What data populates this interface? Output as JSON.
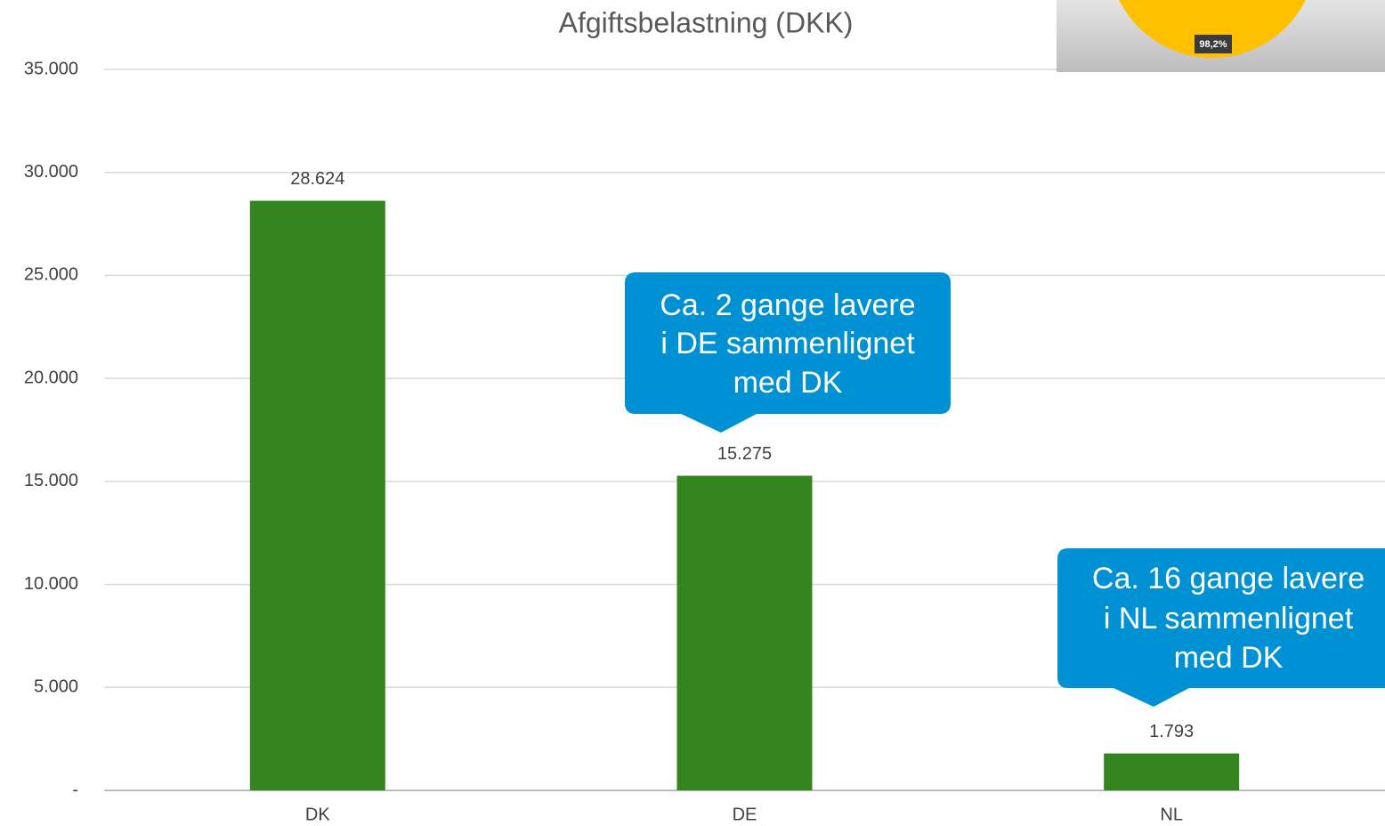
{
  "chart_data": {
    "type": "bar",
    "title": "Afgiftsbelastning (DKK)",
    "categories": [
      "DK",
      "DE",
      "NL"
    ],
    "values": [
      28624,
      15275,
      1793
    ],
    "value_labels": [
      "28.624",
      "15.275",
      "1.793"
    ],
    "color": "#348520",
    "ylim": [
      0,
      35000
    ],
    "yticks": [
      {
        "value": 0,
        "label": "-"
      },
      {
        "value": 5000,
        "label": "5.000"
      },
      {
        "value": 10000,
        "label": "10.000"
      },
      {
        "value": 15000,
        "label": "15.000"
      },
      {
        "value": 20000,
        "label": "20.000"
      },
      {
        "value": 25000,
        "label": "25.000"
      },
      {
        "value": 30000,
        "label": "30.000"
      },
      {
        "value": 35000,
        "label": "35.000"
      }
    ],
    "grid": true,
    "annotations": [
      {
        "lines": [
          "Ca. 2 gange lavere",
          "i DE sammenlignet",
          "med DK"
        ]
      },
      {
        "lines": [
          "Ca. 16 gange lavere",
          "i NL sammenlignet",
          "med DK"
        ]
      }
    ],
    "inset_label": "98,2%"
  }
}
